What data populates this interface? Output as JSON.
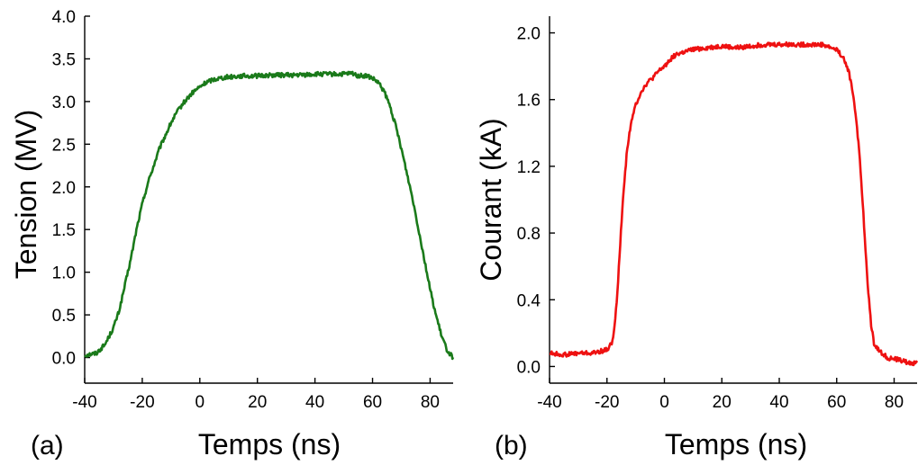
{
  "chart_data": [
    {
      "type": "line",
      "panel_label": "(a)",
      "xlabel": "Temps (ns)",
      "ylabel": "Tension (MV)",
      "xlim": [
        -40,
        88
      ],
      "ylim": [
        -0.3,
        4.0
      ],
      "xticks": [
        -40,
        -20,
        0,
        20,
        40,
        60,
        80
      ],
      "xtick_labels": [
        "-40",
        "-20",
        "0",
        "20",
        "40",
        "60",
        "80"
      ],
      "yticks": [
        0.0,
        0.5,
        1.0,
        1.5,
        2.0,
        2.5,
        3.0,
        3.5,
        4.0
      ],
      "ytick_labels": [
        "0.0",
        "0.5",
        "1.0",
        "1.5",
        "2.0",
        "2.5",
        "3.0",
        "3.5",
        "4.0"
      ],
      "grid": false,
      "series": [
        {
          "color": "#1a7a1a",
          "x": [
            -40,
            -36,
            -33,
            -30,
            -28,
            -26,
            -24,
            -22,
            -20,
            -18,
            -16,
            -14,
            -12,
            -10,
            -8,
            -6,
            -4,
            -2,
            0,
            2,
            4,
            6,
            10,
            15,
            20,
            25,
            30,
            35,
            40,
            45,
            50,
            53,
            55,
            58,
            60,
            62,
            64,
            66,
            68,
            70,
            72,
            74,
            76,
            78,
            80,
            82,
            84,
            86,
            88
          ],
          "y": [
            0.03,
            0.05,
            0.15,
            0.35,
            0.55,
            0.85,
            1.15,
            1.5,
            1.8,
            2.05,
            2.25,
            2.45,
            2.6,
            2.75,
            2.87,
            2.97,
            3.05,
            3.12,
            3.17,
            3.22,
            3.25,
            3.27,
            3.29,
            3.3,
            3.3,
            3.31,
            3.31,
            3.31,
            3.32,
            3.32,
            3.32,
            3.33,
            3.3,
            3.3,
            3.27,
            3.22,
            3.12,
            2.95,
            2.72,
            2.45,
            2.15,
            1.85,
            1.5,
            1.15,
            0.8,
            0.5,
            0.25,
            0.08,
            0.0
          ]
        }
      ]
    },
    {
      "type": "line",
      "panel_label": "(b)",
      "xlabel": "Temps (ns)",
      "ylabel": "Courant (kA)",
      "xlim": [
        -40,
        88
      ],
      "ylim": [
        -0.1,
        2.1
      ],
      "xticks": [
        -40,
        -20,
        0,
        20,
        40,
        60,
        80
      ],
      "xtick_labels": [
        "-40",
        "-20",
        "0",
        "20",
        "40",
        "60",
        "80"
      ],
      "yticks": [
        0.0,
        0.4,
        0.8,
        1.2,
        1.6,
        2.0
      ],
      "ytick_labels": [
        "0.0",
        "0.4",
        "0.8",
        "1.2",
        "1.6",
        "2.0"
      ],
      "grid": false,
      "series": [
        {
          "color": "#ee1111",
          "x": [
            -40,
            -35,
            -30,
            -25,
            -20,
            -18,
            -17,
            -16,
            -15,
            -14,
            -13,
            -12,
            -11,
            -10,
            -8,
            -6,
            -4,
            -2,
            0,
            2,
            4,
            6,
            8,
            10,
            15,
            20,
            25,
            30,
            35,
            40,
            45,
            50,
            55,
            60,
            62,
            64,
            65,
            66,
            67,
            68,
            69,
            70,
            71,
            72,
            73,
            75,
            78,
            82,
            85,
            88
          ],
          "y": [
            0.08,
            0.07,
            0.08,
            0.08,
            0.1,
            0.15,
            0.3,
            0.55,
            0.85,
            1.1,
            1.3,
            1.42,
            1.5,
            1.57,
            1.65,
            1.7,
            1.73,
            1.77,
            1.8,
            1.84,
            1.87,
            1.88,
            1.89,
            1.9,
            1.91,
            1.92,
            1.91,
            1.92,
            1.93,
            1.93,
            1.93,
            1.93,
            1.93,
            1.9,
            1.86,
            1.78,
            1.7,
            1.6,
            1.45,
            1.25,
            1.0,
            0.7,
            0.45,
            0.25,
            0.14,
            0.09,
            0.05,
            0.04,
            0.02,
            0.02
          ]
        }
      ]
    }
  ]
}
